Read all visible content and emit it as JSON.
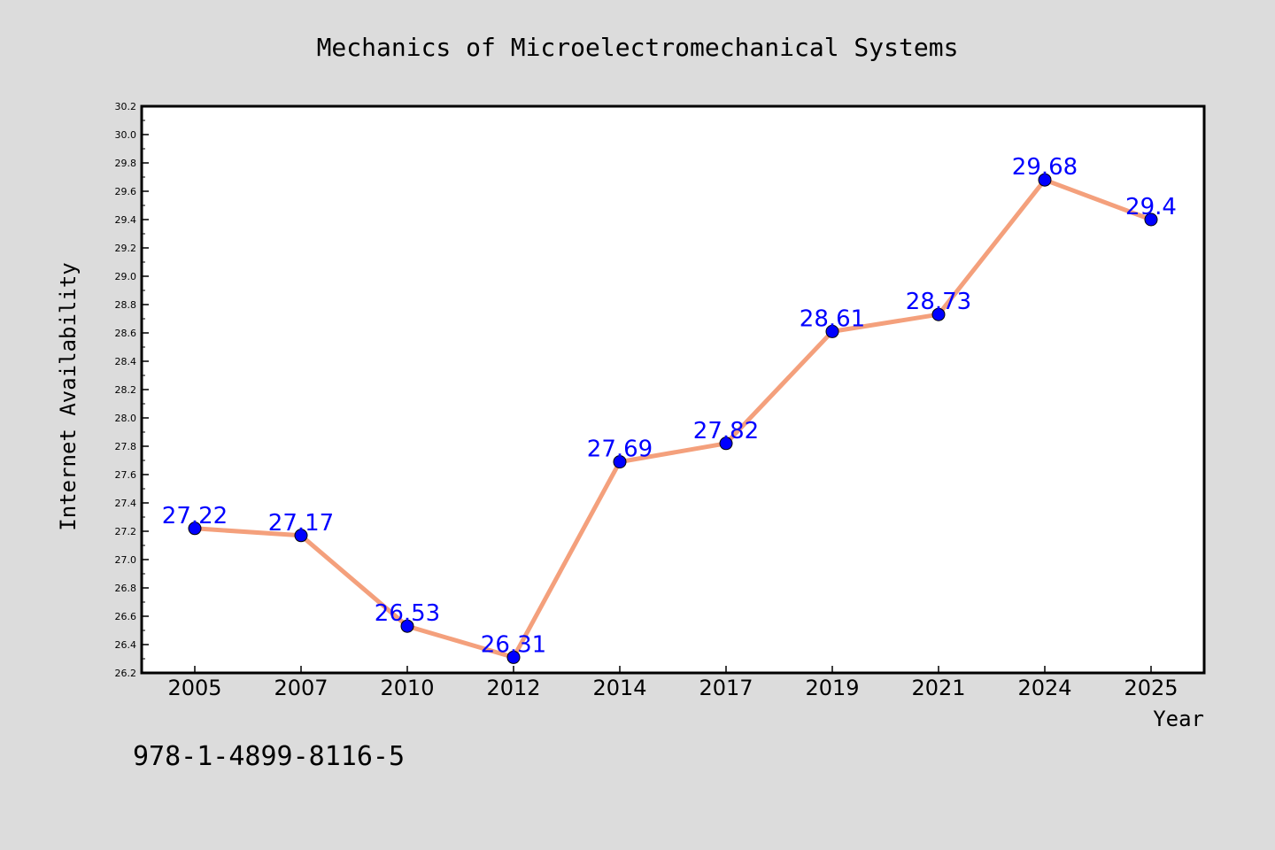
{
  "chart_data": {
    "type": "line",
    "title": "Mechanics of Microelectromechanical Systems",
    "xlabel": "Year",
    "ylabel": "Internet Availability",
    "categories": [
      "2005",
      "2007",
      "2010",
      "2012",
      "2014",
      "2017",
      "2019",
      "2021",
      "2024",
      "2025"
    ],
    "values": [
      27.22,
      27.17,
      26.53,
      26.31,
      27.69,
      27.82,
      28.61,
      28.73,
      29.68,
      29.4
    ],
    "data_labels": [
      "27.22",
      "27.17",
      "26.53",
      "26.31",
      "27.69",
      "27.82",
      "28.61",
      "28.73",
      "29.68",
      "29.4"
    ],
    "ylim": [
      26.2,
      30.2
    ],
    "yticks": [
      "26.2",
      "26.4",
      "26.6",
      "26.8",
      "27.0",
      "27.2",
      "27.4",
      "27.6",
      "27.8",
      "28.0",
      "28.2",
      "28.4",
      "28.6",
      "28.8",
      "29.0",
      "29.2",
      "29.4",
      "29.6",
      "29.8",
      "30.0",
      "30.2"
    ],
    "grid": false,
    "legend": "none",
    "line_color": "#f4a07c",
    "marker_color": "#0000ff",
    "label_color": "#0000ff",
    "background": "#dcdcdc",
    "plot_background": "#ffffff"
  },
  "footer_text": "978-1-4899-8116-5"
}
